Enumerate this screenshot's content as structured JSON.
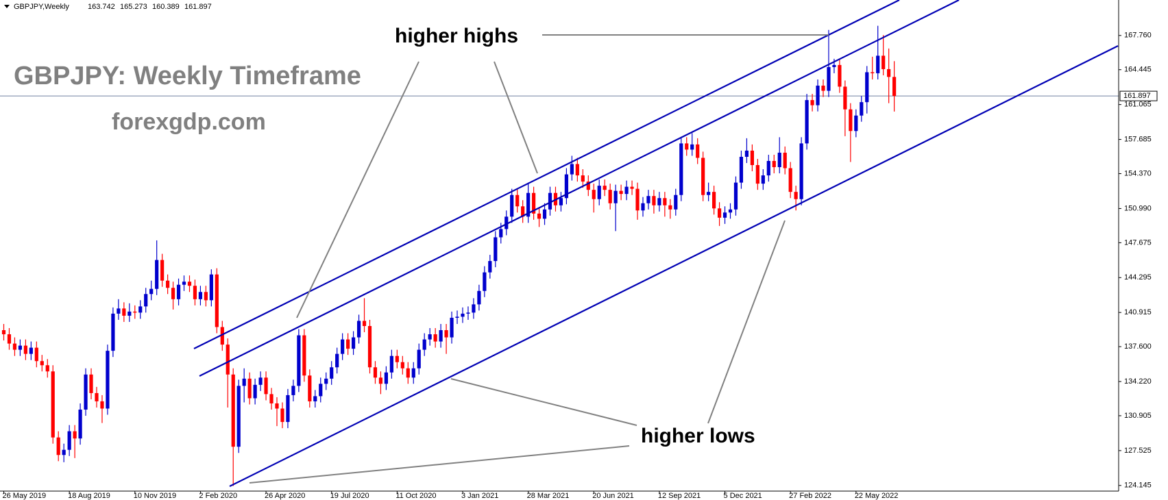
{
  "chart_data": {
    "type": "candlestick",
    "header": {
      "symbol": "GBPJPY,Weekly",
      "open": 163.742,
      "high": 165.273,
      "low": 160.389,
      "close": 161.897
    },
    "title": "GBPJPY: Weekly Timeframe",
    "subtitle": "forexgdp.com",
    "annotations": [
      "higher highs",
      "higher lows"
    ],
    "up_color": "#0000cd",
    "down_color": "#ff0000",
    "categories": [
      "26 May 2019",
      null,
      null,
      null,
      null,
      null,
      null,
      null,
      null,
      null,
      null,
      null,
      "18 Aug 2019",
      null,
      null,
      null,
      null,
      null,
      null,
      null,
      null,
      null,
      null,
      null,
      "10 Nov 2019",
      null,
      null,
      null,
      null,
      null,
      null,
      null,
      null,
      null,
      null,
      null,
      "2 Feb 2020",
      null,
      null,
      null,
      null,
      null,
      null,
      null,
      null,
      null,
      null,
      null,
      "26 Apr 2020",
      null,
      null,
      null,
      null,
      null,
      null,
      null,
      null,
      null,
      null,
      null,
      "19 Jul 2020",
      null,
      null,
      null,
      null,
      null,
      null,
      null,
      null,
      null,
      null,
      null,
      "11 Oct 2020",
      null,
      null,
      null,
      null,
      null,
      null,
      null,
      null,
      null,
      null,
      null,
      "3 Jan 2021",
      null,
      null,
      null,
      null,
      null,
      null,
      null,
      null,
      null,
      null,
      null,
      "28 Mar 2021",
      null,
      null,
      null,
      null,
      null,
      null,
      null,
      null,
      null,
      null,
      null,
      "20 Jun 2021",
      null,
      null,
      null,
      null,
      null,
      null,
      null,
      null,
      null,
      null,
      null,
      "12 Sep 2021",
      null,
      null,
      null,
      null,
      null,
      null,
      null,
      null,
      null,
      null,
      null,
      "5 Dec 2021",
      null,
      null,
      null,
      null,
      null,
      null,
      null,
      null,
      null,
      null,
      null,
      "27 Feb 2022",
      null,
      null,
      null,
      null,
      null,
      null,
      null,
      null,
      null,
      null,
      null,
      "22 May 2022",
      null,
      null,
      null,
      null,
      null,
      null,
      null
    ],
    "open": [
      139.2,
      138.8,
      137.9,
      137.3,
      137.7,
      136.9,
      137.5,
      136.2,
      135.8,
      135.2,
      128.8,
      127.1,
      127.6,
      129.4,
      128.7,
      131.5,
      134.9,
      133.1,
      132.3,
      131.6,
      137.2,
      140.8,
      141.3,
      140.6,
      141.0,
      140.9,
      141.5,
      142.7,
      143.2,
      146.0,
      144.0,
      143.3,
      142.2,
      143.6,
      143.9,
      143.5,
      142.2,
      142.9,
      142.1,
      144.6,
      139.5,
      137.8,
      134.9,
      127.9,
      133.8,
      134.5,
      132.6,
      133.9,
      134.6,
      133.0,
      132.1,
      131.6,
      130.3,
      132.9,
      133.8,
      138.7,
      134.8,
      132.3,
      132.8,
      134.0,
      134.5,
      135.6,
      136.9,
      138.3,
      137.4,
      138.5,
      140.1,
      139.6,
      135.6,
      134.6,
      134.0,
      135.1,
      136.7,
      136.1,
      135.5,
      134.6,
      135.5,
      137.3,
      138.3,
      138.8,
      138.1,
      139.2,
      138.5,
      140.4,
      140.5,
      140.8,
      140.9,
      141.7,
      143.0,
      144.8,
      145.9,
      148.2,
      149.0,
      150.2,
      152.3,
      151.2,
      150.2,
      152.5,
      150.5,
      150.0,
      150.9,
      152.5,
      151.3,
      152.0,
      154.3,
      155.3,
      154.2,
      153.6,
      152.8,
      151.9,
      153.2,
      152.8,
      151.5,
      152.7,
      152.4,
      153.1,
      152.9,
      150.8,
      151.5,
      152.2,
      151.3,
      152.0,
      151.3,
      150.9,
      152.3,
      157.3,
      156.7,
      157.2,
      155.9,
      152.3,
      152.6,
      151.0,
      150.1,
      150.6,
      150.9,
      153.5,
      156.0,
      156.6,
      155.2,
      153.4,
      154.2,
      155.6,
      155.0,
      156.4,
      154.9,
      152.6,
      151.9,
      157.3,
      161.5,
      161.0,
      162.9,
      162.4,
      164.7,
      164.9,
      162.8,
      160.6,
      158.5,
      160.0,
      161.3,
      164.2,
      164.1,
      165.8,
      164.5,
      163.742
    ],
    "high": [
      139.8,
      139.4,
      138.5,
      138.3,
      138.3,
      138.1,
      138.1,
      136.8,
      136.4,
      135.8,
      129.4,
      128.2,
      130.0,
      130.0,
      132.1,
      135.5,
      135.5,
      133.7,
      132.9,
      137.8,
      141.4,
      142.2,
      141.9,
      141.8,
      141.6,
      142.1,
      143.3,
      144.0,
      147.9,
      146.6,
      144.6,
      143.9,
      144.2,
      144.5,
      144.5,
      144.1,
      143.5,
      143.5,
      145.1,
      145.2,
      140.1,
      138.4,
      135.5,
      134.4,
      135.5,
      135.1,
      134.5,
      135.2,
      135.2,
      133.6,
      132.7,
      132.2,
      133.5,
      134.4,
      139.3,
      139.3,
      135.4,
      133.4,
      134.6,
      135.1,
      136.2,
      137.5,
      138.9,
      138.9,
      139.1,
      140.7,
      142.3,
      140.2,
      136.2,
      135.2,
      135.7,
      137.3,
      137.3,
      136.7,
      136.1,
      136.1,
      137.9,
      138.9,
      139.4,
      139.4,
      139.8,
      139.8,
      141.0,
      141.1,
      141.4,
      141.5,
      142.3,
      143.6,
      145.4,
      146.5,
      148.8,
      149.6,
      150.8,
      152.9,
      152.9,
      151.8,
      153.5,
      153.1,
      151.1,
      151.5,
      153.1,
      153.1,
      152.6,
      154.9,
      156.1,
      155.9,
      154.8,
      154.2,
      153.4,
      153.8,
      153.8,
      153.4,
      153.3,
      153.3,
      153.7,
      153.7,
      153.5,
      152.1,
      152.8,
      152.8,
      152.6,
      152.6,
      151.9,
      152.9,
      157.9,
      157.9,
      158.3,
      157.8,
      156.5,
      153.5,
      153.2,
      151.6,
      151.2,
      151.5,
      154.1,
      156.6,
      157.8,
      157.2,
      155.8,
      154.8,
      156.2,
      156.2,
      157.9,
      157.0,
      155.5,
      153.2,
      157.9,
      162.1,
      162.1,
      163.5,
      163.5,
      168.3,
      165.5,
      165.5,
      163.4,
      161.2,
      160.6,
      161.9,
      164.8,
      165.7,
      168.7,
      167.8,
      166.5,
      165.273
    ],
    "low": [
      138.2,
      137.3,
      136.7,
      136.7,
      136.3,
      136.3,
      135.6,
      135.2,
      134.6,
      128.2,
      126.5,
      126.4,
      127.0,
      126.8,
      128.1,
      130.9,
      132.5,
      131.7,
      130.2,
      131.0,
      136.6,
      140.2,
      140.0,
      140.0,
      140.3,
      140.3,
      140.9,
      142.1,
      142.6,
      143.4,
      142.7,
      141.2,
      141.6,
      143.0,
      142.9,
      141.6,
      141.6,
      141.5,
      141.5,
      138.9,
      137.2,
      131.7,
      124.1,
      127.3,
      132.2,
      132.0,
      132.0,
      133.3,
      132.4,
      131.5,
      129.9,
      129.7,
      129.7,
      132.3,
      133.2,
      134.2,
      131.7,
      131.7,
      132.2,
      133.4,
      133.9,
      135.0,
      136.3,
      136.8,
      136.8,
      137.9,
      139.0,
      135.0,
      134.0,
      133.0,
      133.4,
      134.5,
      135.5,
      134.9,
      134.0,
      134.0,
      134.9,
      136.7,
      137.7,
      137.5,
      137.5,
      136.9,
      137.9,
      139.8,
      139.9,
      140.2,
      140.3,
      141.1,
      142.4,
      144.2,
      145.3,
      147.6,
      148.4,
      149.6,
      150.6,
      149.6,
      149.6,
      149.9,
      149.2,
      149.4,
      150.3,
      150.7,
      150.7,
      151.4,
      153.7,
      153.6,
      153.0,
      152.2,
      150.6,
      151.3,
      152.2,
      150.9,
      148.8,
      151.8,
      151.8,
      152.3,
      149.9,
      150.2,
      150.9,
      150.5,
      150.7,
      150.2,
      150.0,
      150.3,
      151.7,
      156.1,
      156.1,
      155.3,
      151.7,
      151.7,
      150.4,
      149.3,
      149.5,
      150.0,
      150.3,
      152.9,
      155.4,
      154.6,
      152.8,
      152.8,
      153.6,
      154.4,
      154.4,
      154.3,
      152.0,
      150.8,
      151.3,
      156.7,
      160.4,
      160.4,
      161.8,
      161.8,
      164.1,
      162.2,
      158.0,
      155.5,
      157.9,
      159.4,
      160.2,
      163.5,
      163.5,
      163.9,
      161.2,
      160.389
    ],
    "close": [
      138.8,
      137.9,
      137.3,
      137.7,
      136.9,
      137.5,
      136.2,
      135.8,
      135.2,
      128.8,
      127.1,
      127.6,
      129.4,
      128.7,
      131.5,
      134.9,
      133.1,
      132.3,
      131.6,
      137.2,
      140.8,
      141.3,
      140.6,
      141.0,
      140.9,
      141.5,
      142.7,
      143.2,
      146.0,
      144.0,
      143.3,
      142.2,
      143.6,
      143.9,
      143.5,
      142.2,
      142.9,
      142.1,
      144.6,
      139.5,
      137.8,
      134.9,
      127.9,
      133.8,
      134.5,
      132.6,
      133.9,
      134.6,
      133.0,
      132.1,
      131.6,
      130.3,
      132.9,
      133.8,
      138.7,
      134.8,
      132.3,
      132.8,
      134.0,
      134.5,
      135.6,
      136.9,
      138.3,
      137.4,
      138.5,
      140.1,
      139.6,
      135.6,
      134.6,
      134.0,
      135.1,
      136.7,
      136.1,
      135.5,
      134.6,
      135.5,
      137.3,
      138.3,
      138.8,
      138.1,
      139.2,
      138.5,
      140.4,
      140.5,
      140.8,
      140.9,
      141.7,
      143.0,
      144.8,
      145.9,
      148.2,
      149.0,
      150.2,
      152.3,
      151.2,
      150.2,
      152.5,
      150.5,
      150.0,
      150.9,
      152.5,
      151.3,
      152.0,
      154.3,
      155.3,
      154.2,
      153.6,
      152.8,
      151.9,
      153.2,
      152.8,
      151.5,
      152.7,
      152.4,
      153.1,
      152.9,
      150.8,
      151.5,
      152.2,
      151.3,
      152.0,
      151.3,
      150.9,
      152.3,
      157.3,
      156.7,
      157.2,
      155.9,
      152.3,
      152.6,
      151.0,
      150.1,
      150.6,
      150.9,
      153.5,
      156.0,
      156.6,
      155.2,
      153.4,
      154.2,
      155.6,
      155.0,
      156.4,
      154.9,
      152.6,
      151.9,
      157.3,
      161.5,
      161.0,
      162.9,
      162.4,
      164.7,
      164.9,
      162.8,
      160.6,
      158.5,
      160.0,
      161.3,
      164.2,
      164.1,
      165.8,
      164.5,
      163.742,
      161.897
    ],
    "current_price": 161.897,
    "ylim": [
      123.6,
      171.2
    ],
    "yticks": [
      {
        "value": 167.76,
        "label": "167.760"
      },
      164.445,
      161.065,
      157.685,
      {
        "value": 154.37,
        "label": "154.370"
      },
      {
        "value": 150.99,
        "label": "150.990"
      },
      147.675,
      144.295,
      140.915,
      {
        "value": 137.6,
        "label": "137.600"
      },
      {
        "value": 134.22,
        "label": "134.220"
      },
      130.905,
      127.525,
      124.145
    ]
  }
}
